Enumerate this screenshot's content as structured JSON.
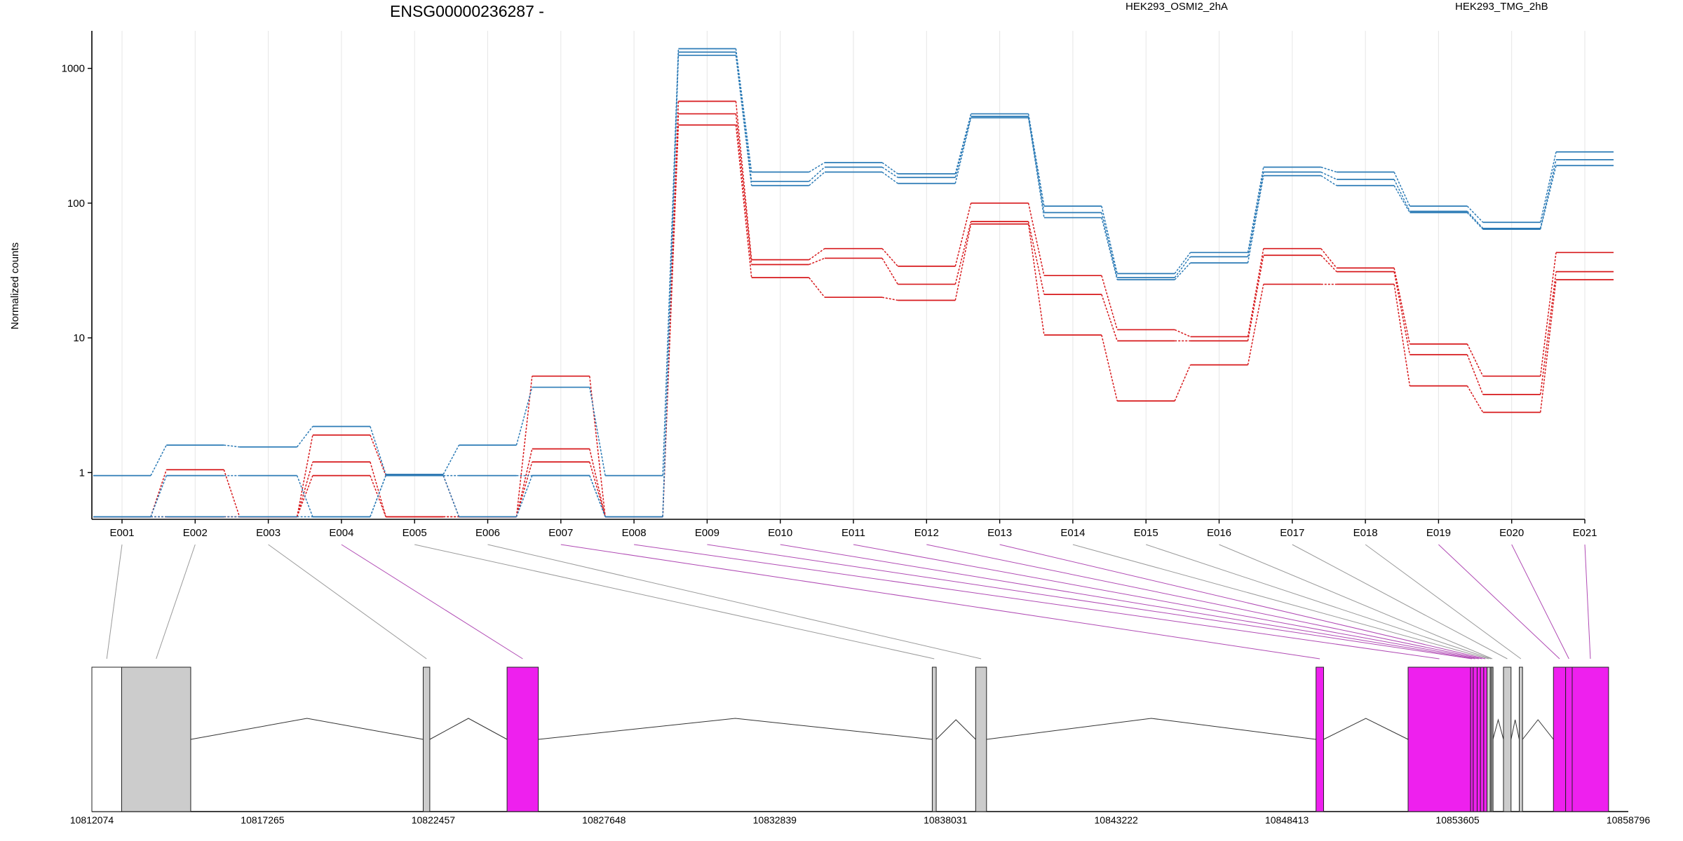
{
  "chart_data": {
    "type": "line",
    "title": "ENSG00000236287 -",
    "ylabel": "Normalized counts",
    "yscale": "log",
    "ylim": [
      0.45,
      1900
    ],
    "yticks": [
      1,
      10,
      100,
      1000
    ],
    "ytick_labels": [
      "1",
      "10",
      "100",
      "1000"
    ],
    "categories": [
      "E001",
      "E002",
      "E003",
      "E004",
      "E005",
      "E006",
      "E007",
      "E008",
      "E009",
      "E010",
      "E011",
      "E012",
      "E013",
      "E014",
      "E015",
      "E016",
      "E017",
      "E018",
      "E019",
      "E020",
      "E021"
    ],
    "legend": [
      {
        "name": "HEK293_OSMI2_2hA",
        "color": "#d7191c"
      },
      {
        "name": "HEK293_TMG_2hB",
        "color": "#2c7bb6"
      }
    ],
    "series": [
      {
        "group": "HEK293_OSMI2_2hA",
        "color": "#d7191c",
        "values": [
          0.47,
          1.05,
          0.47,
          1.9,
          0.95,
          0.47,
          5.2,
          0.47,
          570,
          38,
          46,
          34,
          100,
          29,
          11.5,
          10.2,
          46,
          33,
          9,
          5.2,
          43
        ]
      },
      {
        "group": "HEK293_OSMI2_2hA",
        "color": "#d7191c",
        "values": [
          0.47,
          0.47,
          0.47,
          1.2,
          0.47,
          0.47,
          1.5,
          0.47,
          460,
          35,
          39,
          25,
          73,
          21,
          9.5,
          9.5,
          41,
          31,
          7.5,
          3.8,
          31
        ]
      },
      {
        "group": "HEK293_OSMI2_2hA",
        "color": "#d7191c",
        "values": [
          0.47,
          0.47,
          0.47,
          0.95,
          0.47,
          0.47,
          1.2,
          0.47,
          380,
          28,
          20,
          19,
          70,
          10.5,
          3.4,
          6.3,
          25,
          25,
          4.4,
          2.8,
          27
        ]
      },
      {
        "group": "HEK293_TMG_2hB",
        "color": "#2c7bb6",
        "values": [
          0.95,
          1.6,
          1.55,
          2.2,
          0.97,
          1.6,
          4.3,
          0.95,
          1400,
          170,
          200,
          165,
          460,
          95,
          30,
          43,
          185,
          170,
          95,
          72,
          240
        ]
      },
      {
        "group": "HEK293_TMG_2hB",
        "color": "#2c7bb6",
        "values": [
          0.47,
          0.95,
          0.95,
          0.47,
          0.95,
          0.95,
          0.95,
          0.47,
          1320,
          145,
          185,
          155,
          440,
          85,
          28,
          40,
          170,
          150,
          87,
          65,
          210
        ]
      },
      {
        "group": "HEK293_TMG_2hB",
        "color": "#2c7bb6",
        "values": [
          0.47,
          0.47,
          0.47,
          0.47,
          0.95,
          0.47,
          0.95,
          0.47,
          1250,
          135,
          170,
          140,
          430,
          78,
          27,
          36,
          160,
          135,
          85,
          64,
          190
        ]
      }
    ],
    "gene_model": {
      "coord_start": 10812074,
      "coord_end": 10858796,
      "coord_labels": [
        "10812074",
        "10817265",
        "10822457",
        "10827648",
        "10832839",
        "10838031",
        "10843222",
        "10848413",
        "10853605",
        "10858796"
      ],
      "exons": [
        {
          "id": "E001",
          "start": 10812074,
          "end": 10812980,
          "color": "#ffffff"
        },
        {
          "id": "E002",
          "start": 10812980,
          "end": 10815080,
          "color": "#cccccc"
        },
        {
          "id": "E003",
          "start": 10822150,
          "end": 10822350,
          "color": "#cccccc"
        },
        {
          "id": "E004",
          "start": 10824700,
          "end": 10825650,
          "color": "#ee20ee"
        },
        {
          "id": "E005",
          "start": 10837630,
          "end": 10837750,
          "color": "#cccccc"
        },
        {
          "id": "E006",
          "start": 10838950,
          "end": 10839280,
          "color": "#cccccc"
        },
        {
          "id": "E007",
          "start": 10849300,
          "end": 10849530,
          "color": "#ee20ee"
        },
        {
          "id": "E008",
          "start": 10852100,
          "end": 10854000,
          "color": "#ee20ee"
        },
        {
          "id": "E009",
          "start": 10854000,
          "end": 10854080,
          "color": "#ee20ee"
        },
        {
          "id": "E010",
          "start": 10854080,
          "end": 10854200,
          "color": "#ee20ee"
        },
        {
          "id": "E011",
          "start": 10854200,
          "end": 10854300,
          "color": "#ee20ee"
        },
        {
          "id": "E012",
          "start": 10854300,
          "end": 10854400,
          "color": "#ee20ee"
        },
        {
          "id": "E013",
          "start": 10854400,
          "end": 10854500,
          "color": "#ee20ee"
        },
        {
          "id": "E014",
          "start": 10854500,
          "end": 10854600,
          "color": "#cccccc"
        },
        {
          "id": "E015",
          "start": 10854600,
          "end": 10854640,
          "color": "#cccccc"
        },
        {
          "id": "E016",
          "start": 10854640,
          "end": 10854680,
          "color": "#cccccc"
        },
        {
          "id": "E017",
          "start": 10855000,
          "end": 10855230,
          "color": "#cccccc"
        },
        {
          "id": "E018",
          "start": 10855480,
          "end": 10855580,
          "color": "#cccccc"
        },
        {
          "id": "E019",
          "start": 10856520,
          "end": 10856890,
          "color": "#ee20ee"
        },
        {
          "id": "E020",
          "start": 10856890,
          "end": 10857090,
          "color": "#ee20ee"
        },
        {
          "id": "E021",
          "start": 10857090,
          "end": 10858196,
          "color": "#ee20ee"
        }
      ]
    }
  }
}
